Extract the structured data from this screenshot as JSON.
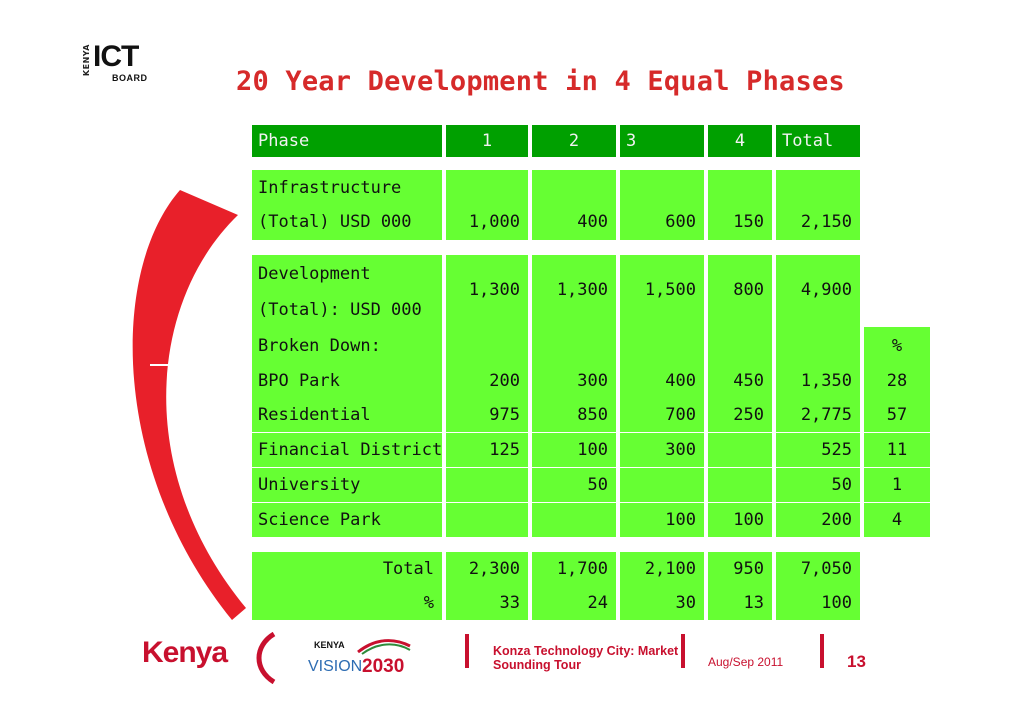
{
  "logo": {
    "country": "KENYA",
    "name": "ICT",
    "sub": "BOARD"
  },
  "title": "20 Year Development in 4 Equal Phases",
  "table": {
    "header": [
      "Phase",
      "1",
      "2",
      "3",
      "4",
      "Total"
    ],
    "infrastructure": {
      "label1": "Infrastructure",
      "label2": "(Total) USD 000",
      "values": [
        "1,000",
        "400",
        "600",
        "150",
        "2,150"
      ]
    },
    "development": {
      "label1": "Development",
      "label2": "(Total): USD 000",
      "values": [
        "1,300",
        "1,300",
        "1,500",
        "800",
        "4,900"
      ]
    },
    "broken_down": {
      "label": "Broken Down:",
      "pct_header": "%"
    },
    "rows": [
      {
        "label": "BPO Park",
        "values": [
          "200",
          "300",
          "400",
          "450",
          "1,350"
        ],
        "pct": "28"
      },
      {
        "label": "Residential",
        "values": [
          "975",
          "850",
          "700",
          "250",
          "2,775"
        ],
        "pct": "57"
      },
      {
        "label": "Financial District",
        "values": [
          "125",
          "100",
          "300",
          "",
          "525"
        ],
        "pct": "11"
      },
      {
        "label": "University",
        "values": [
          "",
          "50",
          "",
          "",
          "50"
        ],
        "pct": "1"
      },
      {
        "label": "Science Park",
        "values": [
          "",
          "",
          "100",
          "100",
          "200"
        ],
        "pct": "4"
      }
    ],
    "total": {
      "label": "Total",
      "values": [
        "2,300",
        "1,700",
        "2,100",
        "950",
        "7,050"
      ]
    },
    "percent": {
      "label": "%",
      "values": [
        "33",
        "24",
        "30",
        "13",
        "100"
      ]
    }
  },
  "footer": {
    "kenya": "Kenya",
    "vision_small": "KENYA",
    "vision_word": "VISION",
    "vision_year": "2030",
    "event_line1": "Konza Technology City: Market",
    "event_line2": "Sounding Tour",
    "date": "Aug/Sep 2011",
    "page": "13"
  },
  "colors": {
    "header_green": "#00a000",
    "cell_green": "#66ff33",
    "accent_red": "#d62a2a"
  }
}
